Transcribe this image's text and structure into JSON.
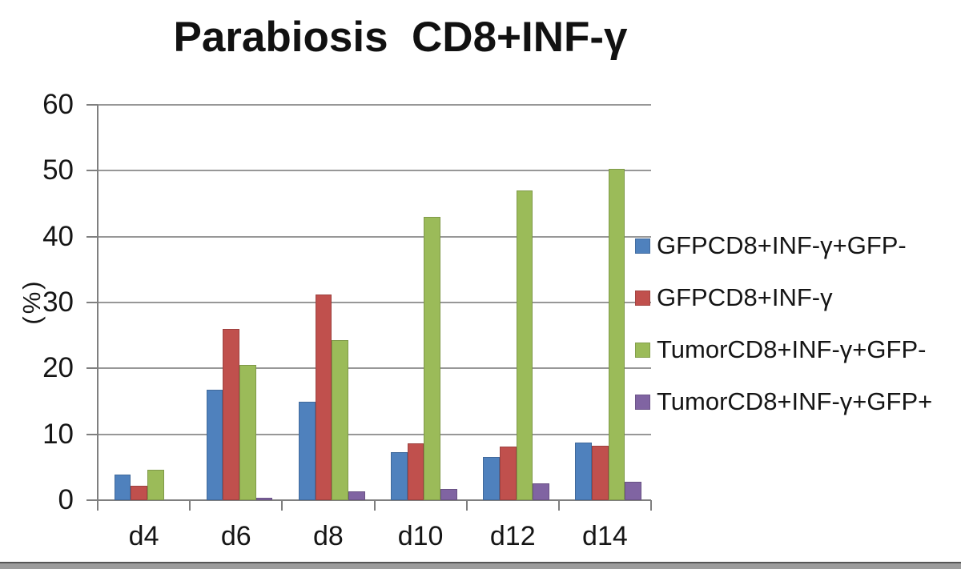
{
  "page": {
    "background": "#ffffff"
  },
  "chart_data": {
    "type": "bar",
    "title": "Parabiosis  CD8+INF-γ",
    "ylabel": "(%)",
    "xlabel": "",
    "categories": [
      "d4",
      "d6",
      "d8",
      "d10",
      "d12",
      "d14"
    ],
    "series": [
      {
        "name": "GFPCD8+INF-γ+GFP-",
        "color": "#4F81BD",
        "values": [
          3.9,
          16.8,
          14.9,
          7.3,
          6.6,
          8.8
        ]
      },
      {
        "name": "GFPCD8+INF-γ",
        "color": "#C0504D",
        "values": [
          2.2,
          26.0,
          31.2,
          8.6,
          8.1,
          8.3
        ]
      },
      {
        "name": "TumorCD8+INF-γ+GFP-",
        "color": "#9BBB59",
        "values": [
          4.6,
          20.5,
          24.3,
          43.0,
          47.0,
          50.3
        ]
      },
      {
        "name": "TumorCD8+INF-γ+GFP+",
        "color": "#8064A2",
        "values": [
          0,
          0.4,
          1.3,
          1.7,
          2.6,
          2.8
        ]
      }
    ],
    "ylim": [
      0,
      60
    ],
    "yticks": [
      0,
      10,
      20,
      30,
      40,
      50,
      60
    ],
    "ytick_step": 10,
    "grid": true,
    "legend_position": "right",
    "gridline_color": "#979797",
    "axis_color": "#7f7f7f",
    "text_color": "#151515"
  }
}
